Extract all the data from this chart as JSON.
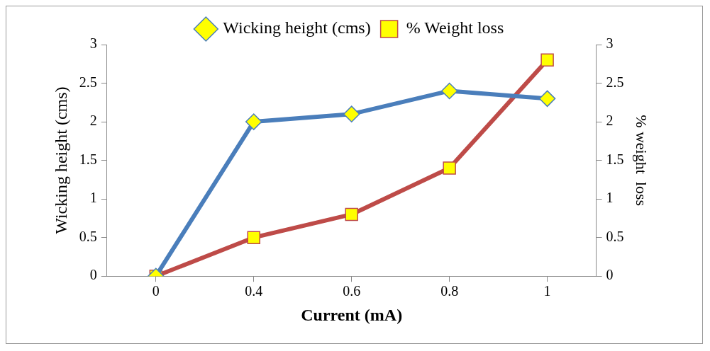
{
  "chart_data": {
    "type": "line",
    "xlabel": "Current (mA)",
    "ylabel": "Wicking height (cms)",
    "y2label": "% weight  loss",
    "categories": [
      "0",
      "0.4",
      "0.6",
      "0.8",
      "1"
    ],
    "series": [
      {
        "name": "Wicking height (cms)",
        "color": "#4a7ebb",
        "values": [
          0,
          2,
          2.1,
          2.4,
          2.3
        ],
        "marker": "diamond"
      },
      {
        "name": "% Weight loss",
        "color": "#be4b48",
        "values": [
          0,
          0.5,
          0.8,
          1.4,
          2.8
        ],
        "axis": "y2",
        "marker": "square"
      }
    ],
    "ylim": [
      0,
      3
    ],
    "yticks": [
      0,
      0.5,
      1,
      1.5,
      2,
      2.5,
      3
    ],
    "y2lim": [
      0,
      3
    ],
    "y2ticks": [
      0,
      0.5,
      1,
      1.5,
      2,
      2.5,
      3
    ],
    "grid": false,
    "legend": "top",
    "line_style": "solid"
  }
}
